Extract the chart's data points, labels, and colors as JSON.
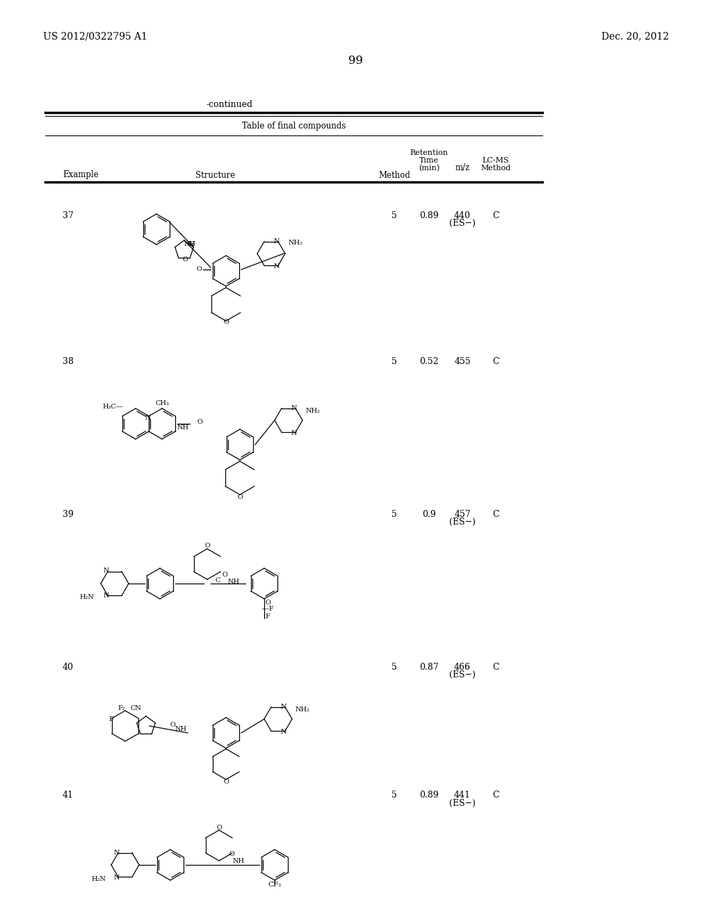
{
  "page_number": "99",
  "patent_number": "US 2012/0322795 A1",
  "date": "Dec. 20, 2012",
  "continued_label": "-continued",
  "table_title": "Table of final compounds",
  "col_headers": [
    "Example",
    "Structure",
    "Method",
    "Retention\nTime\n(min)",
    "m/z",
    "LC-MS\nMethod"
  ],
  "rows": [
    {
      "example": "37",
      "method": "5",
      "retention": "0.89",
      "mz": "440\n(ES−)",
      "lcms": "C"
    },
    {
      "example": "38",
      "method": "5",
      "retention": "0.52",
      "mz": "455",
      "lcms": "C"
    },
    {
      "example": "39",
      "method": "5",
      "retention": "0.9",
      "mz": "457\n(ES−)",
      "lcms": "C"
    },
    {
      "example": "40",
      "method": "5",
      "retention": "0.87",
      "mz": "466\n(ES−)",
      "lcms": "C"
    },
    {
      "example": "41",
      "method": "5",
      "retention": "0.89",
      "mz": "441\n(ES−)",
      "lcms": "C"
    }
  ],
  "bg_color": "#ffffff",
  "text_color": "#000000",
  "line_color": "#000000",
  "font_size_header": 9,
  "font_size_body": 9,
  "font_size_page": 11,
  "font_size_patent": 10
}
